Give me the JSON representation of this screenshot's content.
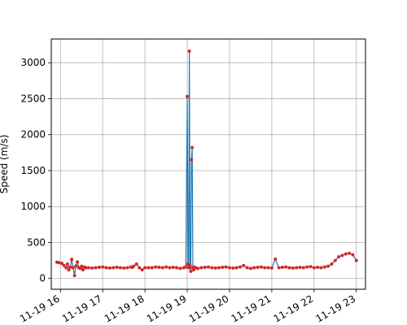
{
  "chart_data": {
    "type": "line",
    "title": "",
    "xlabel": "",
    "ylabel": "Speed (m/s)",
    "grid": true,
    "legend": null,
    "xlim": [
      "2023-11-19 15:47",
      "2023-11-19 23:13"
    ],
    "ylim": [
      -150,
      3330
    ],
    "x_ticks": [
      "2023-11-19 16:00",
      "2023-11-19 17:00",
      "2023-11-19 18:00",
      "2023-11-19 19:00",
      "2023-11-19 20:00",
      "2023-11-19 21:00",
      "2023-11-19 22:00",
      "2023-11-19 23:00"
    ],
    "x_tick_labels": [
      "11-19 16",
      "11-19 17",
      "11-19 18",
      "11-19 19",
      "11-19 20",
      "11-19 21",
      "11-19 22",
      "11-19 23"
    ],
    "y_ticks": [
      0,
      500,
      1000,
      1500,
      2000,
      2500,
      3000
    ],
    "y_tick_labels": [
      "0",
      "500",
      "1000",
      "1500",
      "2000",
      "2500",
      "3000"
    ],
    "line_color": "#1f77b4",
    "marker_color": "#d62728",
    "series": [
      {
        "x": [
          "2023-11-19 15:55",
          "2023-11-19 15:58",
          "2023-11-19 16:02",
          "2023-11-19 16:05",
          "2023-11-19 16:08",
          "2023-11-19 16:10",
          "2023-11-19 16:12",
          "2023-11-19 16:14",
          "2023-11-19 16:16",
          "2023-11-19 16:18",
          "2023-11-19 16:20",
          "2023-11-19 16:22",
          "2023-11-19 16:24",
          "2023-11-19 16:26",
          "2023-11-19 16:28",
          "2023-11-19 16:30",
          "2023-11-19 16:32",
          "2023-11-19 16:34",
          "2023-11-19 16:36",
          "2023-11-19 16:40",
          "2023-11-19 16:45",
          "2023-11-19 16:50",
          "2023-11-19 16:55",
          "2023-11-19 17:00",
          "2023-11-19 17:05",
          "2023-11-19 17:10",
          "2023-11-19 17:15",
          "2023-11-19 17:20",
          "2023-11-19 17:25",
          "2023-11-19 17:30",
          "2023-11-19 17:35",
          "2023-11-19 17:40",
          "2023-11-19 17:42",
          "2023-11-19 17:44",
          "2023-11-19 17:48",
          "2023-11-19 17:52",
          "2023-11-19 17:56",
          "2023-11-19 18:00",
          "2023-11-19 18:05",
          "2023-11-19 18:10",
          "2023-11-19 18:15",
          "2023-11-19 18:20",
          "2023-11-19 18:25",
          "2023-11-19 18:30",
          "2023-11-19 18:35",
          "2023-11-19 18:40",
          "2023-11-19 18:45",
          "2023-11-19 18:50",
          "2023-11-19 18:55",
          "2023-11-19 18:58",
          "2023-11-19 19:00",
          "2023-11-19 19:01",
          "2023-11-19 19:02",
          "2023-11-19 19:03",
          "2023-11-19 19:04",
          "2023-11-19 19:05",
          "2023-11-19 19:06",
          "2023-11-19 19:07",
          "2023-11-19 19:08",
          "2023-11-19 19:09",
          "2023-11-19 19:10",
          "2023-11-19 19:12",
          "2023-11-19 19:15",
          "2023-11-19 19:20",
          "2023-11-19 19:25",
          "2023-11-19 19:30",
          "2023-11-19 19:35",
          "2023-11-19 19:40",
          "2023-11-19 19:45",
          "2023-11-19 19:50",
          "2023-11-19 19:55",
          "2023-11-19 20:00",
          "2023-11-19 20:05",
          "2023-11-19 20:10",
          "2023-11-19 20:15",
          "2023-11-19 20:20",
          "2023-11-19 20:25",
          "2023-11-19 20:30",
          "2023-11-19 20:35",
          "2023-11-19 20:40",
          "2023-11-19 20:45",
          "2023-11-19 20:50",
          "2023-11-19 20:55",
          "2023-11-19 21:00",
          "2023-11-19 21:05",
          "2023-11-19 21:10",
          "2023-11-19 21:15",
          "2023-11-19 21:20",
          "2023-11-19 21:25",
          "2023-11-19 21:30",
          "2023-11-19 21:35",
          "2023-11-19 21:40",
          "2023-11-19 21:45",
          "2023-11-19 21:50",
          "2023-11-19 21:55",
          "2023-11-19 22:00",
          "2023-11-19 22:05",
          "2023-11-19 22:10",
          "2023-11-19 22:15",
          "2023-11-19 22:20",
          "2023-11-19 22:25",
          "2023-11-19 22:30",
          "2023-11-19 22:35",
          "2023-11-19 22:40",
          "2023-11-19 22:45",
          "2023-11-19 22:50",
          "2023-11-19 22:55",
          "2023-11-19 23:00"
        ],
        "y": [
          225,
          220,
          210,
          180,
          150,
          200,
          120,
          160,
          265,
          150,
          40,
          175,
          230,
          150,
          140,
          170,
          120,
          160,
          150,
          150,
          145,
          150,
          155,
          160,
          150,
          145,
          150,
          155,
          150,
          145,
          150,
          160,
          155,
          170,
          200,
          150,
          120,
          150,
          150,
          150,
          160,
          155,
          150,
          160,
          150,
          155,
          150,
          140,
          150,
          160,
          2530,
          200,
          150,
          3160,
          180,
          100,
          1650,
          1820,
          150,
          120,
          160,
          150,
          140,
          150,
          155,
          160,
          150,
          145,
          150,
          155,
          160,
          150,
          145,
          150,
          160,
          180,
          150,
          140,
          150,
          155,
          160,
          150,
          150,
          145,
          270,
          150,
          155,
          160,
          150,
          145,
          150,
          155,
          150,
          160,
          165,
          150,
          155,
          150,
          160,
          170,
          200,
          250,
          300,
          320,
          340,
          350,
          330,
          250
        ]
      }
    ]
  }
}
